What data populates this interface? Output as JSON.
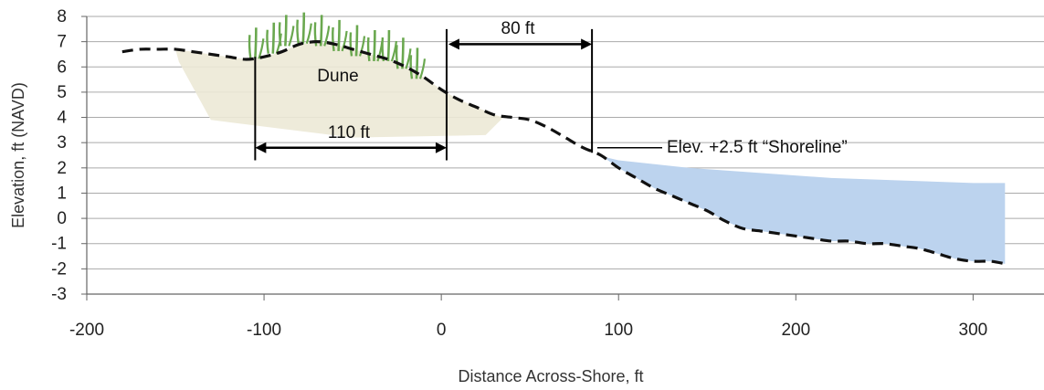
{
  "chart_data": {
    "type": "area",
    "xlabel": "Distance Across-Shore, ft",
    "ylabel": "Elevation, ft (NAVD)",
    "xlim": [
      -200,
      340
    ],
    "ylim": [
      -3,
      8
    ],
    "x_ticks": [
      "-200",
      "-100",
      "0",
      "100",
      "200",
      "300"
    ],
    "y_ticks": [
      "8",
      "7",
      "6",
      "5",
      "4",
      "3",
      "2",
      "1",
      "0",
      "-1",
      "-2",
      "-3"
    ],
    "grid": "horizontal",
    "series": [
      {
        "x": [
          -180,
          -170,
          -160,
          -150,
          -140,
          -130,
          -120,
          -110,
          -100,
          -90,
          -80,
          -70,
          -60,
          -50,
          -40,
          -30,
          -20,
          -10,
          0,
          10,
          20,
          30,
          40,
          50,
          60,
          70,
          80,
          90,
          100,
          110,
          120,
          130,
          140,
          150,
          160,
          170,
          180,
          190,
          200,
          210,
          220,
          230,
          240,
          250,
          260,
          270,
          280,
          290,
          300,
          310,
          318
        ],
        "values": [
          6.6,
          6.7,
          6.7,
          6.7,
          6.6,
          6.5,
          6.4,
          6.3,
          6.4,
          6.6,
          6.9,
          7.0,
          6.9,
          6.7,
          6.5,
          6.3,
          6.0,
          5.6,
          5.1,
          4.7,
          4.4,
          4.1,
          4.0,
          3.9,
          3.6,
          3.2,
          2.8,
          2.5,
          2.0,
          1.6,
          1.2,
          0.9,
          0.6,
          0.3,
          -0.1,
          -0.4,
          -0.5,
          -0.6,
          -0.7,
          -0.8,
          -0.9,
          -0.9,
          -1.0,
          -1.0,
          -1.1,
          -1.2,
          -1.4,
          -1.6,
          -1.7,
          -1.7,
          -1.8
        ]
      }
    ],
    "water": {
      "color": "#bcd3ee",
      "x": [
        88,
        100,
        140,
        180,
        220,
        260,
        300,
        318
      ],
      "top": [
        2.5,
        2.3,
        2.0,
        1.8,
        1.6,
        1.5,
        1.4,
        1.4
      ]
    },
    "dune": {
      "label": "Dune",
      "color": "#ece9d6"
    },
    "annotations": {
      "dune_width": {
        "label": "110 ft",
        "x1": -105,
        "x2": 3,
        "y": 2.8
      },
      "beach_width": {
        "label": "80 ft",
        "x1": 4,
        "x2": 85,
        "y": 6.9
      },
      "shoreline": {
        "label": "Elev. +2.5 ft “Shoreline”",
        "x": 88,
        "y": 2.8
      }
    },
    "colors": {
      "profile": "#111111",
      "grid": "#aaaaaa",
      "axis": "#666666",
      "grass": "#6aa84f"
    }
  }
}
